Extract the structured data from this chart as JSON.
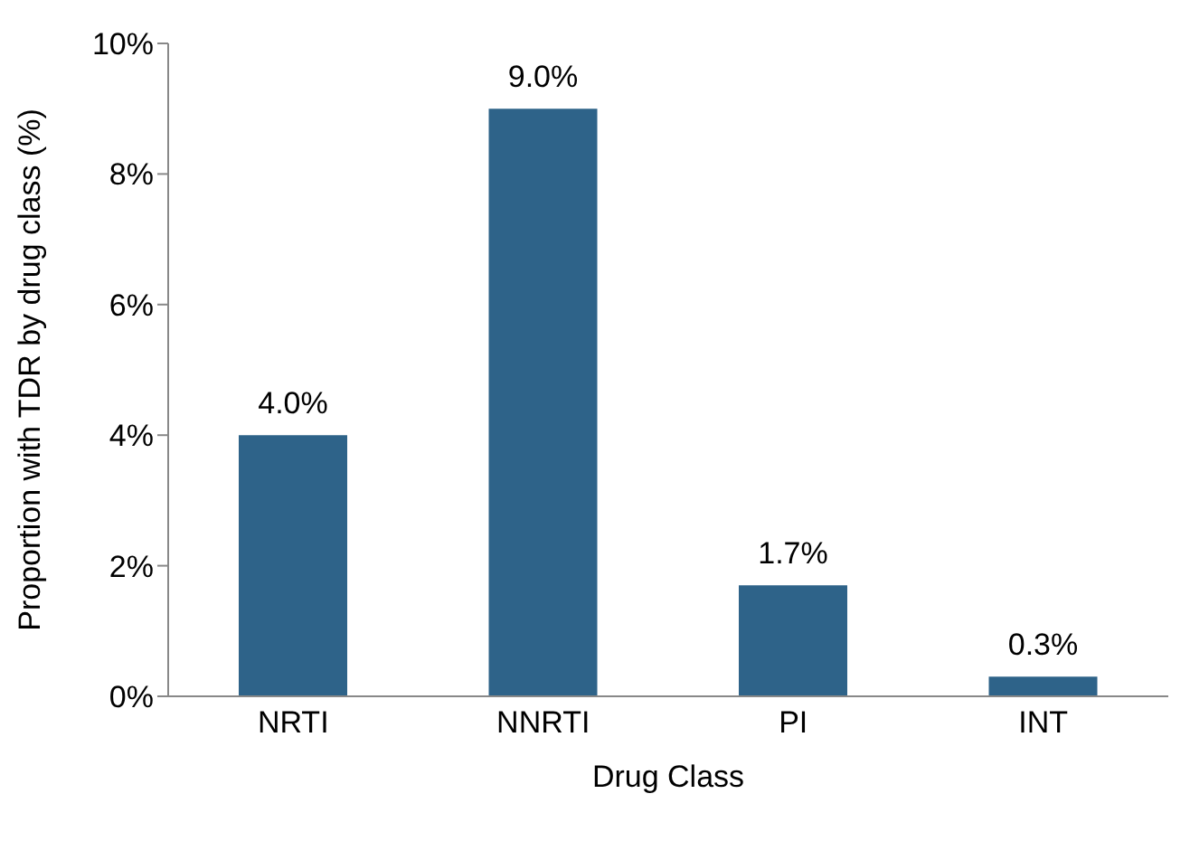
{
  "chart_data": {
    "type": "bar",
    "xlabel": "Drug Class",
    "ylabel": "Proportion with TDR by drug class (%)",
    "categories": [
      "NRTI",
      "NNRTI",
      "PI",
      "INT"
    ],
    "values": [
      4.0,
      9.0,
      1.7,
      0.3
    ],
    "value_labels": [
      "4.0%",
      "9.0%",
      "1.7%",
      "0.3%"
    ],
    "color": "#2e6389",
    "ylim": [
      0,
      10
    ],
    "yticks": [
      {
        "value": 0,
        "label": "0%"
      },
      {
        "value": 2,
        "label": "2%"
      },
      {
        "value": 4,
        "label": "4%"
      },
      {
        "value": 6,
        "label": "6%"
      },
      {
        "value": 8,
        "label": "8%"
      },
      {
        "value": 10,
        "label": "10%"
      }
    ],
    "grid": false,
    "legend": false
  }
}
